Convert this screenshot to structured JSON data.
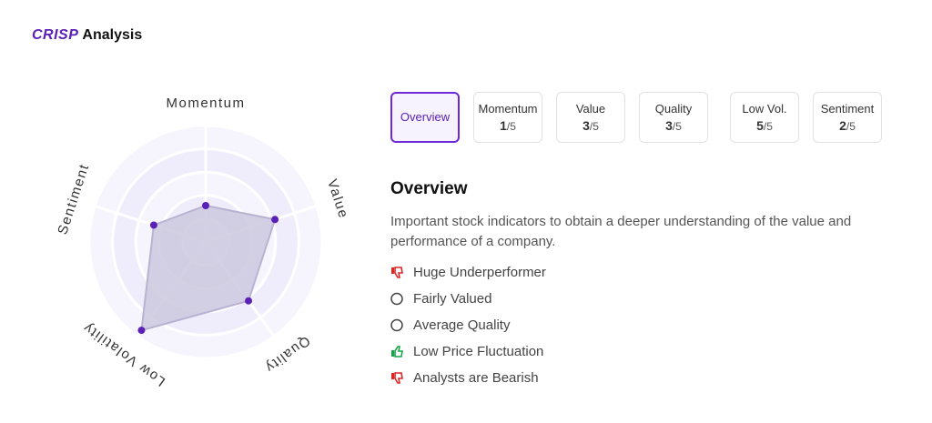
{
  "header": {
    "brand": "CRISP",
    "title": "Analysis"
  },
  "chart_data": {
    "type": "radar",
    "categories": [
      "Momentum",
      "Value",
      "Quality",
      "Low Volatility",
      "Sentiment"
    ],
    "values": [
      1,
      3,
      3,
      5,
      2
    ],
    "max": 5,
    "color": "#5b21b6",
    "fill": "#c9c4dc",
    "grid": true
  },
  "tabs": {
    "overview": "Overview",
    "labels": [
      "Momentum",
      "Value",
      "Quality",
      "Low Vol.",
      "Sentiment"
    ],
    "out_of": "/5"
  },
  "section": {
    "title": "Overview",
    "description": "Important stock indicators to obtain a deeper understanding of the value and performance of a company.",
    "items": [
      {
        "text": "Huge Underperformer",
        "status": "negative"
      },
      {
        "text": "Fairly Valued",
        "status": "neutral"
      },
      {
        "text": "Average Quality",
        "status": "neutral"
      },
      {
        "text": "Low Price Fluctuation",
        "status": "positive"
      },
      {
        "text": "Analysts are Bearish",
        "status": "negative"
      }
    ]
  }
}
